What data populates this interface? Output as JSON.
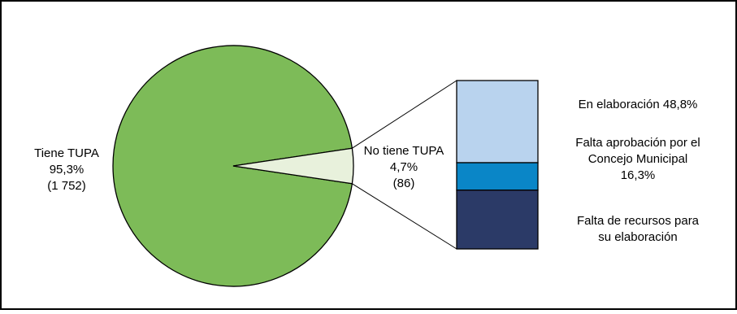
{
  "chart_data": {
    "type": "pie",
    "title": "",
    "slices": [
      {
        "name": "Tiene TUPA",
        "percent_label": "95,3%",
        "count_label": "(1 752)",
        "value": 95.3,
        "color": "#7dbb58"
      },
      {
        "name": "No tiene TUPA",
        "percent_label": "4,7%",
        "count_label": "(86)",
        "value": 4.7,
        "color": "#e8f1dc"
      }
    ],
    "breakdown": {
      "of": "No tiene TUPA",
      "type": "stacked-bar",
      "segments": [
        {
          "label": "En elaboración 48,8%",
          "lines": [
            "En elaboración 48,8%"
          ],
          "value": 48.8,
          "color": "#b9d3ee"
        },
        {
          "label": "Falta aprobación por el Concejo Municipal 16,3%",
          "lines": [
            "Falta aprobación por el",
            "Concejo Municipal",
            "16,3%"
          ],
          "value": 16.3,
          "color": "#0a86c7"
        },
        {
          "label": "Falta de recursos para su elaboración",
          "lines": [
            "Falta de recursos para",
            "su elaboración"
          ],
          "value": 34.9,
          "color": "#2b3a67"
        }
      ]
    }
  }
}
